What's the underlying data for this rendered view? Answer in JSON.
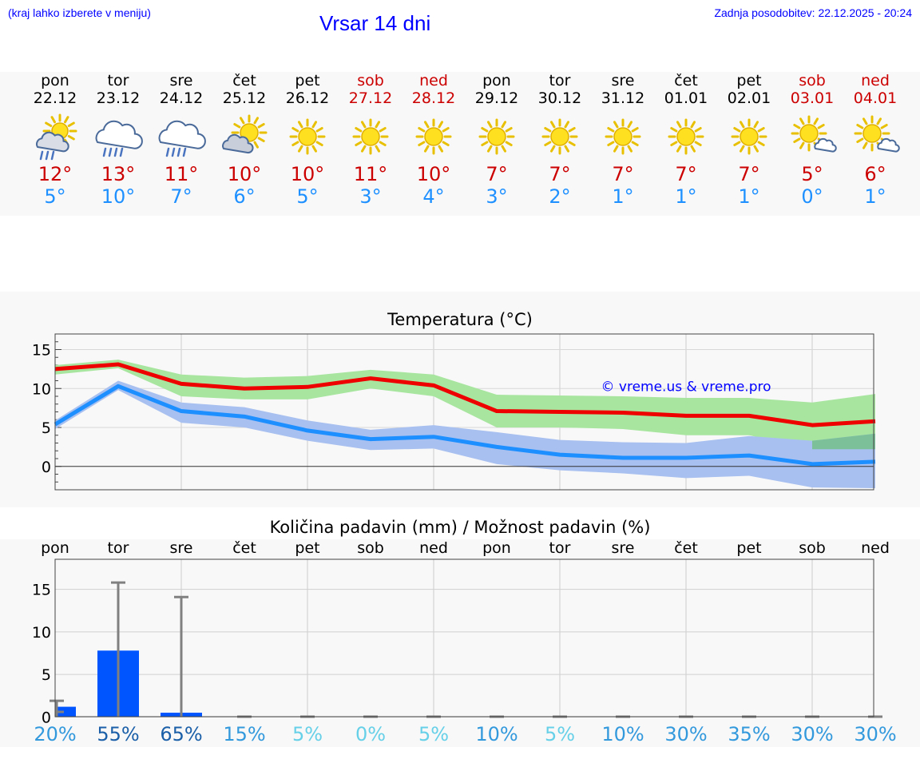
{
  "header": {
    "hint": "(kraj lahko izberete v meniju)",
    "title": "Vrsar 14 dni",
    "updated": "Zadnja posodobitev: 22.12.2025 - 20:24"
  },
  "forecast": [
    {
      "day": "pon",
      "date": "22.12",
      "icon": "sun-cloud-rain-icon",
      "max": "12°",
      "min": "5°",
      "weekend": false
    },
    {
      "day": "tor",
      "date": "23.12",
      "icon": "cloud-rain-icon",
      "max": "13°",
      "min": "10°",
      "weekend": false
    },
    {
      "day": "sre",
      "date": "24.12",
      "icon": "cloud-rain-icon",
      "max": "11°",
      "min": "7°",
      "weekend": false
    },
    {
      "day": "čet",
      "date": "25.12",
      "icon": "sun-cloud-icon",
      "max": "10°",
      "min": "6°",
      "weekend": false
    },
    {
      "day": "pet",
      "date": "26.12",
      "icon": "sun-icon",
      "max": "10°",
      "min": "5°",
      "weekend": false
    },
    {
      "day": "sob",
      "date": "27.12",
      "icon": "sun-icon",
      "max": "11°",
      "min": "3°",
      "weekend": true
    },
    {
      "day": "ned",
      "date": "28.12",
      "icon": "sun-icon",
      "max": "10°",
      "min": "4°",
      "weekend": true
    },
    {
      "day": "pon",
      "date": "29.12",
      "icon": "sun-icon",
      "max": "7°",
      "min": "3°",
      "weekend": false
    },
    {
      "day": "tor",
      "date": "30.12",
      "icon": "sun-icon",
      "max": "7°",
      "min": "2°",
      "weekend": false
    },
    {
      "day": "sre",
      "date": "31.12",
      "icon": "sun-icon",
      "max": "7°",
      "min": "1°",
      "weekend": false
    },
    {
      "day": "čet",
      "date": "01.01",
      "icon": "sun-icon",
      "max": "7°",
      "min": "1°",
      "weekend": false
    },
    {
      "day": "pet",
      "date": "02.01",
      "icon": "sun-icon",
      "max": "7°",
      "min": "1°",
      "weekend": false
    },
    {
      "day": "sob",
      "date": "03.01",
      "icon": "sun-small-cloud-icon",
      "max": "5°",
      "min": "0°",
      "weekend": true
    },
    {
      "day": "ned",
      "date": "04.01",
      "icon": "sun-small-cloud-icon",
      "max": "6°",
      "min": "1°",
      "weekend": true
    }
  ],
  "colors": {
    "max_line": "#ee0000",
    "max_band": "#a8e6a0",
    "min_line": "#1e8fff",
    "min_band": "#a8c0f0",
    "overlap_band": "#7cc09a",
    "bar": "#0055ff",
    "err": "#808080"
  },
  "chart_data": [
    {
      "type": "line",
      "title": "Temperatura (°C)",
      "watermark": "© vreme.us & vreme.pro",
      "x": [
        0,
        1,
        2,
        3,
        4,
        5,
        6,
        7,
        8,
        9,
        10,
        11,
        12,
        13
      ],
      "ylim": [
        -3,
        17
      ],
      "yticks": [
        0,
        5,
        10,
        15
      ],
      "series": [
        {
          "name": "max",
          "values": [
            12.5,
            13.1,
            10.6,
            10.0,
            10.2,
            11.3,
            10.4,
            7.1,
            7.0,
            6.9,
            6.5,
            6.5,
            5.3,
            5.8
          ],
          "band_low": [
            11.8,
            12.6,
            9.0,
            8.6,
            8.6,
            10.0,
            9.0,
            5.0,
            5.0,
            4.8,
            4.0,
            4.0,
            2.2,
            2.2
          ],
          "band_high": [
            13.0,
            13.7,
            11.8,
            11.4,
            11.6,
            12.4,
            11.8,
            9.2,
            9.1,
            9.0,
            8.8,
            8.8,
            8.2,
            9.3
          ]
        },
        {
          "name": "min",
          "values": [
            5.4,
            10.3,
            7.1,
            6.4,
            4.6,
            3.5,
            3.8,
            2.5,
            1.5,
            1.1,
            1.1,
            1.4,
            0.3,
            0.6
          ],
          "band_low": [
            4.8,
            9.8,
            5.6,
            5.0,
            3.3,
            2.1,
            2.3,
            0.3,
            -0.5,
            -0.9,
            -1.5,
            -1.2,
            -2.7,
            -2.8
          ],
          "band_high": [
            5.9,
            11.0,
            8.2,
            7.6,
            5.9,
            4.7,
            5.3,
            4.4,
            3.4,
            3.1,
            3.0,
            3.9,
            3.3,
            4.2
          ]
        }
      ]
    },
    {
      "type": "bar",
      "title": "Količina padavin (mm) / Možnost padavin (%)",
      "categories": [
        "pon",
        "tor",
        "sre",
        "čet",
        "pet",
        "sob",
        "ned",
        "pon",
        "tor",
        "sre",
        "čet",
        "pet",
        "sob",
        "ned"
      ],
      "values": [
        1.2,
        7.8,
        0.5,
        0,
        0,
        0,
        0,
        0,
        0,
        0,
        0,
        0,
        0,
        0
      ],
      "err_high": [
        1.9,
        15.8,
        14.1,
        0,
        0,
        0,
        0,
        0,
        0,
        0,
        0,
        0,
        0,
        0
      ],
      "probability": [
        "20%",
        "55%",
        "65%",
        "15%",
        "5%",
        "0%",
        "5%",
        "10%",
        "5%",
        "10%",
        "30%",
        "35%",
        "30%",
        "30%"
      ],
      "probability_colors": [
        "#3399dd",
        "#1a5fa8",
        "#1a5fa8",
        "#3399dd",
        "#66d0e8",
        "#66d0e8",
        "#66d0e8",
        "#3399dd",
        "#66d0e8",
        "#3399dd",
        "#3399dd",
        "#3399dd",
        "#3399dd",
        "#3399dd"
      ],
      "ylim": [
        -1,
        17.5
      ],
      "yticks": [
        0,
        5,
        10,
        15
      ]
    }
  ]
}
